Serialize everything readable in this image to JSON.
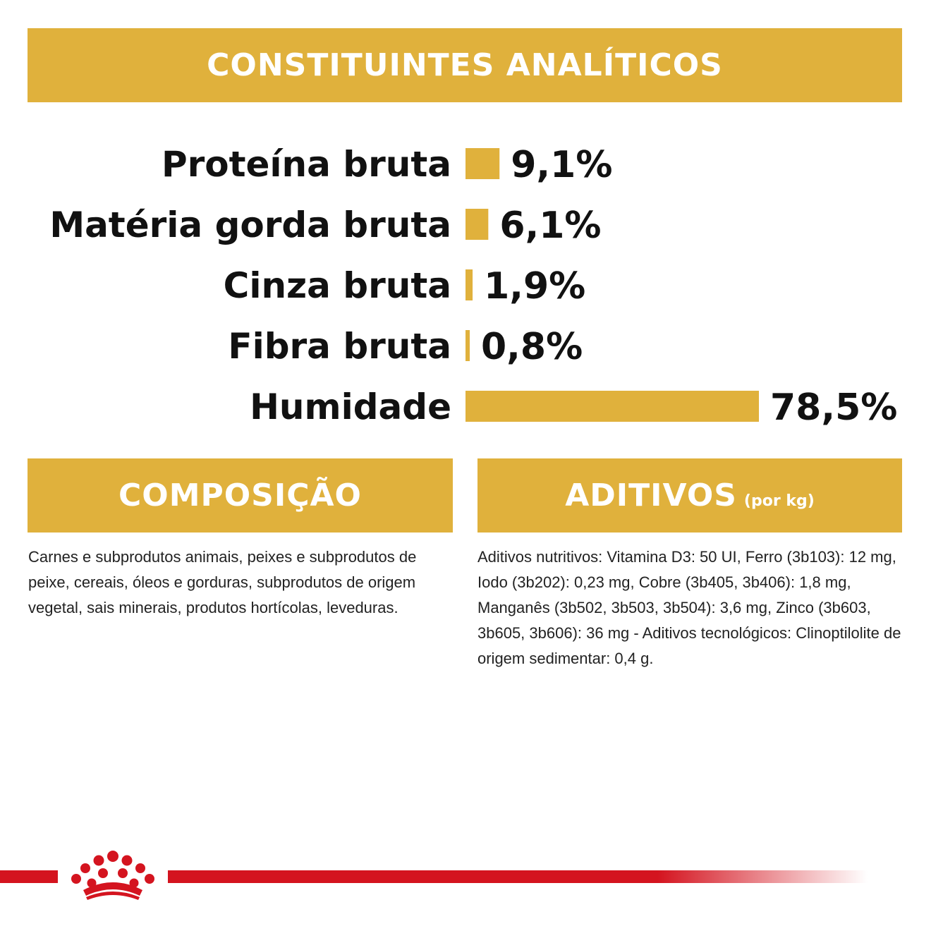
{
  "header": {
    "title": "CONSTITUINTES ANALÍTICOS"
  },
  "chart_data": {
    "type": "bar",
    "orientation": "horizontal",
    "title": "CONSTITUINTES ANALÍTICOS",
    "categories": [
      "Proteína bruta",
      "Matéria gorda bruta",
      "Cinza bruta",
      "Fibra bruta",
      "Humidade"
    ],
    "values": [
      9.1,
      6.1,
      1.9,
      0.8,
      78.5
    ],
    "value_labels": [
      "9,1%",
      "6,1%",
      "1,9%",
      "0,8%",
      "78,5%"
    ],
    "unit": "%",
    "xlim": [
      0,
      78.5
    ],
    "bar_color": "#e0b13c",
    "grid": false,
    "legend": "none"
  },
  "composition": {
    "title": "COMPOSIÇÃO",
    "text": "Carnes e subprodutos animais, peixes e subprodutos de peixe, cereais, óleos e gorduras, subprodutos de origem vegetal, sais minerais, produtos hortícolas, leveduras."
  },
  "additives": {
    "title": "ADITIVOS",
    "title_suffix": "(por kg)",
    "text": "Aditivos nutritivos: Vitamina D3: 50 UI, Ferro (3b103): 12 mg, Iodo (3b202): 0,23 mg, Cobre (3b405, 3b406): 1,8 mg, Manganês (3b502, 3b503, 3b504): 3,6 mg, Zinco (3b603, 3b605, 3b606): 36 mg - Aditivos tecnológicos: Clinoptilolite de origem sedimentar: 0,4 g."
  },
  "colors": {
    "accent": "#e0b13c",
    "brand_red": "#d4141f",
    "text": "#111111"
  },
  "footer": {
    "logo": "royal-crown-icon"
  }
}
